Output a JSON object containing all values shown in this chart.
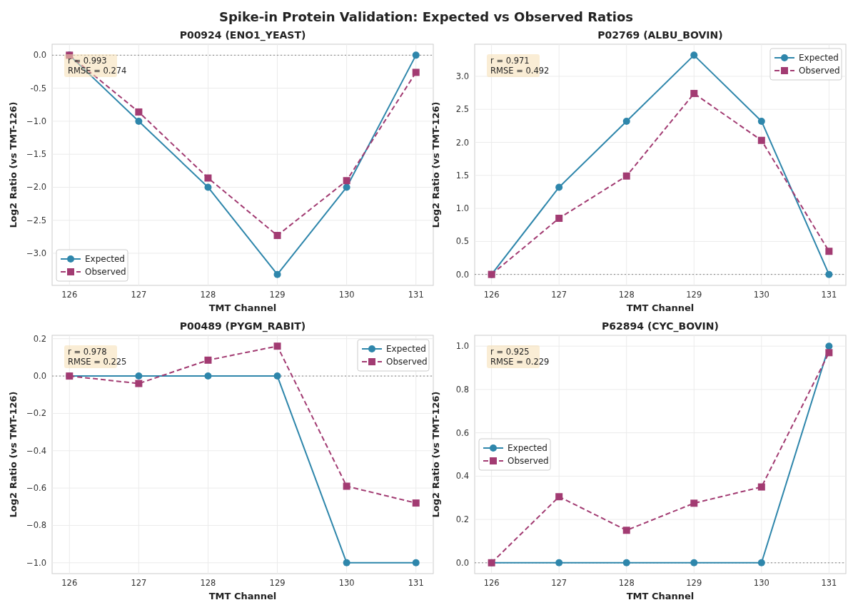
{
  "chart_data": [
    {
      "type": "line",
      "title": "P00924 (ENO1_YEAST)",
      "xlabel": "TMT Channel",
      "ylabel": "Log2 Ratio (vs TMT-126)",
      "x": [
        126,
        127,
        128,
        129,
        130,
        131
      ],
      "xlim": [
        125.75,
        131.25
      ],
      "xticks": [
        126,
        127,
        128,
        129,
        130,
        131
      ],
      "ylim": [
        -3.486,
        0.166
      ],
      "yticks": [
        {
          "value": 0,
          "label": "0.0"
        },
        -0.5,
        {
          "value": -1,
          "label": "−1.0"
        },
        {
          "value": -1.5,
          "label": "−1.5"
        },
        {
          "value": -2,
          "label": "−2.0"
        },
        {
          "value": -2.5,
          "label": "−2.5"
        },
        {
          "value": -3,
          "label": "−3.0"
        }
      ],
      "grid": true,
      "legend": "bottom left",
      "annotations": [
        "r = 0.993\nRMSE = 0.274",
        "Spike-in Protein Validation: Expected vs Observed Ratios"
      ],
      "ref_lines": [
        {
          "axis": "y",
          "value": 0,
          "color": "#808080",
          "line_style": "dotted"
        }
      ],
      "series": [
        {
          "name": "Expected",
          "color": "#2e86ab",
          "marker": "circle",
          "line_style": "solid",
          "values": [
            0,
            -1,
            -2,
            -3.32,
            -2,
            0
          ]
        },
        {
          "name": "Observed",
          "color": "#a23b72",
          "marker": "square",
          "line_style": "dashed",
          "values": [
            0,
            -0.86,
            -1.86,
            -2.73,
            -1.9,
            -0.26
          ]
        }
      ]
    },
    {
      "type": "line",
      "title": "P02769 (ALBU_BOVIN)",
      "xlabel": "TMT Channel",
      "ylabel": "Log2 Ratio (vs TMT-126)",
      "x": [
        126,
        127,
        128,
        129,
        130,
        131
      ],
      "xlim": [
        125.75,
        131.25
      ],
      "xticks": [
        126,
        127,
        128,
        129,
        130,
        131
      ],
      "ylim": [
        -0.166,
        3.486
      ],
      "yticks": [
        {
          "value": 0,
          "label": "0.0"
        },
        0.5,
        {
          "value": 1,
          "label": "1.0"
        },
        1.5,
        {
          "value": 2,
          "label": "2.0"
        },
        2.5,
        {
          "value": 3,
          "label": "3.0"
        }
      ],
      "grid": true,
      "legend": "top right",
      "annotations": [
        "r = 0.971\nRMSE = 0.492"
      ],
      "ref_lines": [
        {
          "axis": "y",
          "value": 0,
          "color": "#808080",
          "line_style": "dotted"
        }
      ],
      "series": [
        {
          "name": "Expected",
          "color": "#2e86ab",
          "marker": "circle",
          "line_style": "solid",
          "values": [
            0,
            1.32,
            2.32,
            3.32,
            2.32,
            0
          ]
        },
        {
          "name": "Observed",
          "color": "#a23b72",
          "marker": "square",
          "line_style": "dashed",
          "values": [
            0,
            0.85,
            1.49,
            2.74,
            2.03,
            0.35
          ]
        }
      ]
    },
    {
      "type": "line",
      "title": "P00489 (PYGM_RABIT)",
      "xlabel": "TMT Channel",
      "ylabel": "Log2 Ratio (vs TMT-126)",
      "x": [
        126,
        127,
        128,
        129,
        130,
        131
      ],
      "xlim": [
        125.75,
        131.25
      ],
      "xticks": [
        126,
        127,
        128,
        129,
        130,
        131
      ],
      "ylim": [
        -1.058,
        0.218
      ],
      "yticks": [
        {
          "value": 0.2,
          "label": "0.2"
        },
        {
          "value": 0,
          "label": "0.0"
        },
        {
          "value": -0.2,
          "label": "−0.2"
        },
        {
          "value": -0.4,
          "label": "−0.4"
        },
        {
          "value": -0.6,
          "label": "−0.6"
        },
        {
          "value": -0.8,
          "label": "−0.8"
        },
        {
          "value": -1,
          "label": "−1.0"
        }
      ],
      "grid": true,
      "legend": "top right",
      "annotations": [
        "r = 0.978\nRMSE = 0.225"
      ],
      "ref_lines": [
        {
          "axis": "y",
          "value": 0,
          "color": "#808080",
          "line_style": "dotted"
        }
      ],
      "series": [
        {
          "name": "Expected",
          "color": "#2e86ab",
          "marker": "circle",
          "line_style": "solid",
          "values": [
            0,
            0,
            0,
            0,
            -1,
            -1
          ]
        },
        {
          "name": "Observed",
          "color": "#a23b72",
          "marker": "square",
          "line_style": "dashed",
          "values": [
            0,
            -0.04,
            0.085,
            0.16,
            -0.59,
            -0.68
          ]
        }
      ]
    },
    {
      "type": "line",
      "title": "P62894 (CYC_BOVIN)",
      "xlabel": "TMT Channel",
      "ylabel": "Log2 Ratio (vs TMT-126)",
      "x": [
        126,
        127,
        128,
        129,
        130,
        131
      ],
      "xlim": [
        125.75,
        131.25
      ],
      "xticks": [
        126,
        127,
        128,
        129,
        130,
        131
      ],
      "ylim": [
        -0.05,
        1.05
      ],
      "yticks": [
        {
          "value": 0,
          "label": "0.0"
        },
        0.2,
        0.4,
        0.6,
        0.8,
        {
          "value": 1,
          "label": "1.0"
        }
      ],
      "grid": true,
      "legend": "left",
      "annotations": [
        "r = 0.925\nRMSE = 0.229"
      ],
      "ref_lines": [
        {
          "axis": "y",
          "value": 0,
          "color": "#808080",
          "line_style": "dotted"
        }
      ],
      "series": [
        {
          "name": "Expected",
          "color": "#2e86ab",
          "marker": "circle",
          "line_style": "solid",
          "values": [
            0,
            0,
            0,
            0,
            0,
            1
          ]
        },
        {
          "name": "Observed",
          "color": "#a23b72",
          "marker": "square",
          "line_style": "dashed",
          "values": [
            0,
            0.305,
            0.15,
            0.275,
            0.35,
            0.97
          ]
        }
      ]
    }
  ]
}
